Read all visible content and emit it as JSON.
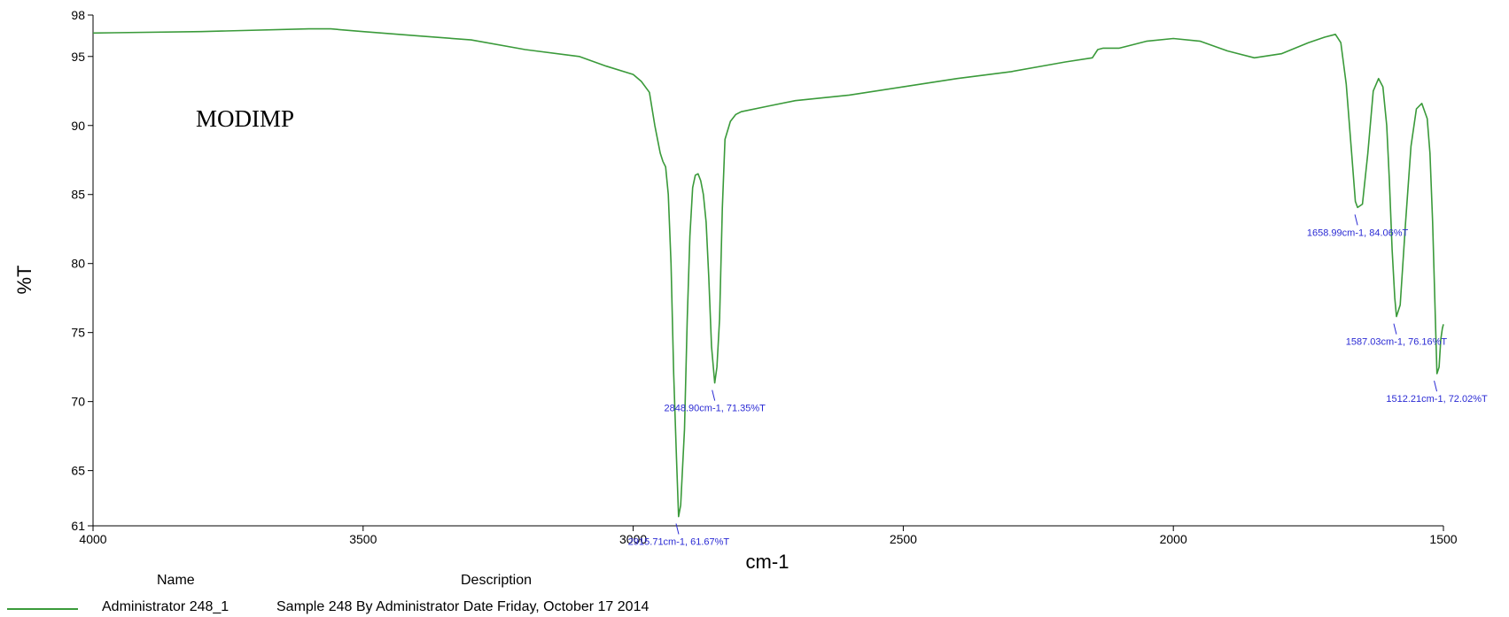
{
  "chart_data": {
    "type": "line",
    "xlabel": "cm-1",
    "ylabel": "%T",
    "xlim": [
      4000,
      1500
    ],
    "ylim": [
      61,
      98
    ],
    "x_ticks": [
      4000,
      3500,
      3000,
      2500,
      2000,
      1500
    ],
    "y_ticks": [
      61,
      65,
      70,
      75,
      80,
      85,
      90,
      95,
      98
    ],
    "annotation": "MODIMP",
    "line_color": "#3a9a3a",
    "label_color": "#2a2ad4",
    "series": [
      {
        "name": "Administrator 248_1",
        "x": [
          4000,
          3800,
          3600,
          3560,
          3500,
          3400,
          3300,
          3200,
          3100,
          3050,
          3000,
          2985,
          2970,
          2960,
          2950,
          2945,
          2940,
          2935,
          2930,
          2925,
          2920,
          2916,
          2912,
          2905,
          2900,
          2895,
          2890,
          2885,
          2880,
          2875,
          2870,
          2865,
          2860,
          2855,
          2849,
          2845,
          2840,
          2835,
          2830,
          2820,
          2810,
          2800,
          2750,
          2700,
          2600,
          2500,
          2400,
          2300,
          2200,
          2150,
          2140,
          2130,
          2100,
          2050,
          2000,
          1950,
          1900,
          1850,
          1800,
          1750,
          1720,
          1700,
          1690,
          1680,
          1670,
          1663,
          1659,
          1650,
          1640,
          1630,
          1620,
          1612,
          1605,
          1600,
          1595,
          1590,
          1587,
          1580,
          1570,
          1560,
          1550,
          1540,
          1530,
          1525,
          1520,
          1515,
          1512,
          1508,
          1505,
          1502,
          1500
        ],
        "y": [
          96.7,
          96.8,
          97.0,
          97.0,
          96.8,
          96.5,
          96.2,
          95.5,
          95.0,
          94.3,
          93.7,
          93.2,
          92.4,
          90.0,
          88.0,
          87.4,
          87.0,
          85.0,
          80.0,
          72.0,
          66.0,
          61.67,
          62.5,
          68.0,
          76.0,
          82.0,
          85.5,
          86.4,
          86.5,
          86.0,
          85.0,
          83.0,
          79.0,
          74.0,
          71.35,
          72.5,
          76.0,
          84.0,
          89.0,
          90.3,
          90.8,
          91.0,
          91.4,
          91.8,
          92.2,
          92.8,
          93.4,
          93.9,
          94.6,
          94.9,
          95.5,
          95.6,
          95.6,
          96.1,
          96.3,
          96.1,
          95.4,
          94.9,
          95.2,
          96.0,
          96.4,
          96.6,
          96.0,
          93.0,
          88.0,
          84.5,
          84.06,
          84.3,
          88.0,
          92.5,
          93.4,
          92.8,
          90.0,
          86.0,
          81.0,
          77.5,
          76.16,
          77.0,
          83.0,
          88.5,
          91.2,
          91.6,
          90.5,
          88.0,
          83.0,
          76.0,
          72.02,
          72.5,
          74.5,
          75.3,
          75.6
        ]
      }
    ],
    "peaks": [
      {
        "x": 2915.71,
        "y": 61.67,
        "label": "2915.71cm-1, 61.67%T"
      },
      {
        "x": 2848.9,
        "y": 71.35,
        "label": "2848.90cm-1, 71.35%T"
      },
      {
        "x": 1658.99,
        "y": 84.06,
        "label": "1658.99cm-1, 84.06%T"
      },
      {
        "x": 1587.03,
        "y": 76.16,
        "label": "1587.03cm-1, 76.16%T"
      },
      {
        "x": 1512.21,
        "y": 72.02,
        "label": "1512.21cm-1, 72.02%T"
      }
    ]
  },
  "legend": {
    "name_header": "Name",
    "description_header": "Description",
    "row_name": "Administrator 248_1",
    "row_description": "Sample 248 By Administrator Date Friday, October 17 2014"
  }
}
